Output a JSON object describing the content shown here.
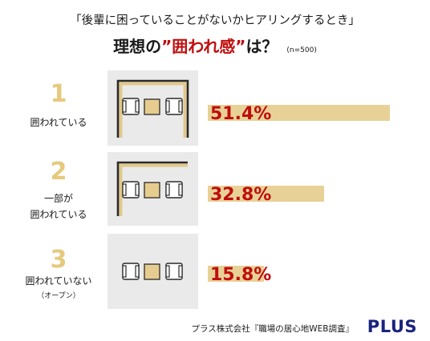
{
  "header": {
    "subtitle": "「後輩に困っていることがないかヒアリングするとき」",
    "title_prefix": "理想の",
    "title_highlight": "”囲われ感”",
    "title_suffix": "は？",
    "sample": "(n=500)"
  },
  "rows": [
    {
      "rank": "1",
      "label_lines": [
        "囲われている"
      ],
      "sub": "",
      "value_text": "51.4%"
    },
    {
      "rank": "2",
      "label_lines": [
        "一部が",
        "囲われている"
      ],
      "sub": "",
      "value_text": "32.8%"
    },
    {
      "rank": "3",
      "label_lines": [
        "囲われていない"
      ],
      "sub": "（オープン）",
      "value_text": "15.8%"
    }
  ],
  "chart_data": {
    "type": "bar",
    "orientation": "horizontal",
    "categories": [
      "囲われている",
      "一部が囲われている",
      "囲われていない（オープン）"
    ],
    "values": [
      51.4,
      32.8,
      15.8
    ],
    "unit": "%",
    "xlim": [
      0,
      60
    ]
  },
  "colors": {
    "bar": "#e8d197",
    "rank": "#e6c97e",
    "accent": "#c00d0d",
    "panel": "#eaeaea",
    "logo": "#1a237e"
  },
  "footer": {
    "source": "プラス株式会社『職場の居心地WEB調査』",
    "logo": "PLUS"
  }
}
